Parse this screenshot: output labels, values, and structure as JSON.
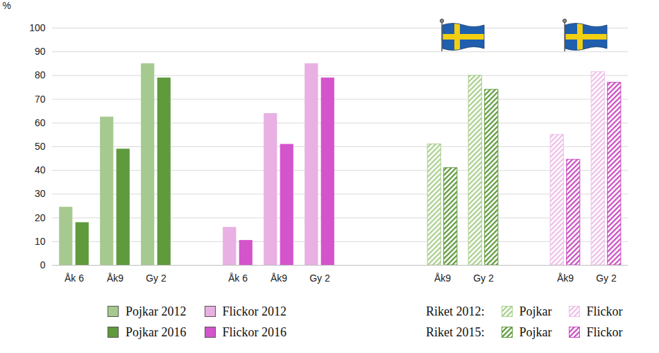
{
  "chart_data": {
    "type": "bar",
    "y_label": "%",
    "categories": [
      "Åk 6",
      "Åk9",
      "Gy 2",
      null,
      "Åk 6",
      "Åk9",
      "Gy 2",
      null,
      null,
      "Åk9",
      "Gy 2",
      null,
      "Åk9",
      "Gy 2"
    ],
    "ylim": [
      0,
      100
    ],
    "yticks": [
      0,
      10,
      20,
      30,
      40,
      50,
      60,
      70,
      80,
      90,
      100
    ],
    "grid": true,
    "series": [
      {
        "name": "Pojkar 2012",
        "color": "#a6c98f",
        "values": [
          24.5,
          62.5,
          85,
          null,
          null,
          null,
          null,
          null,
          null,
          null,
          null,
          null,
          null,
          null
        ]
      },
      {
        "name": "Pojkar 2016",
        "color": "#5f9a3d",
        "values": [
          18,
          49,
          79,
          null,
          null,
          null,
          null,
          null,
          null,
          null,
          null,
          null,
          null,
          null
        ]
      },
      {
        "name": "Flickor 2012",
        "color": "#e8b0e3",
        "values": [
          null,
          null,
          null,
          null,
          16,
          64,
          85,
          null,
          null,
          null,
          null,
          null,
          null,
          null
        ]
      },
      {
        "name": "Flickor 2016",
        "color": "#d454cb",
        "values": [
          null,
          null,
          null,
          null,
          10.5,
          51,
          79,
          null,
          null,
          null,
          null,
          null,
          null,
          null
        ]
      },
      {
        "name": "Pojkar",
        "group": "Riket 2012:",
        "line_style": "hatched",
        "color": "#a9d08e",
        "values": [
          null,
          null,
          null,
          null,
          null,
          null,
          null,
          null,
          null,
          51,
          80,
          null,
          null,
          null
        ]
      },
      {
        "name": "Pojkar",
        "group": "Riket 2015:",
        "line_style": "hatched",
        "color": "#5f9a3d",
        "values": [
          null,
          null,
          null,
          null,
          null,
          null,
          null,
          null,
          null,
          41,
          74,
          null,
          null,
          null
        ]
      },
      {
        "name": "Flickor",
        "group": "Riket 2012:",
        "line_style": "hatched",
        "color": "#eebfe8",
        "values": [
          null,
          null,
          null,
          null,
          null,
          null,
          null,
          null,
          null,
          null,
          null,
          null,
          55,
          81.5
        ]
      },
      {
        "name": "Flickor",
        "group": "Riket 2015:",
        "line_style": "hatched",
        "color": "#c94fc0",
        "values": [
          null,
          null,
          null,
          null,
          null,
          null,
          null,
          null,
          null,
          null,
          null,
          null,
          44.5,
          77
        ]
      }
    ]
  }
}
